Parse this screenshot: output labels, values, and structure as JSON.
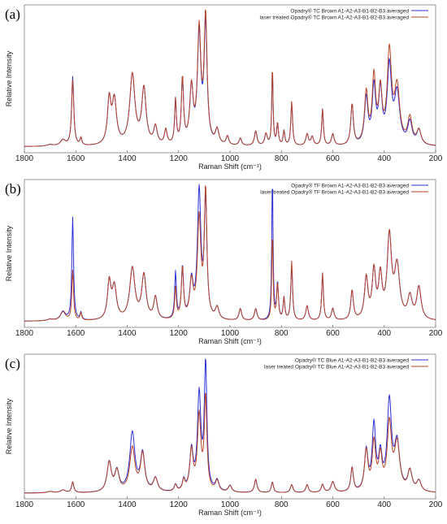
{
  "chart_data": [
    {
      "panel_label": "(a)",
      "type": "line",
      "xlabel": "Raman Shift (cm⁻¹)",
      "ylabel": "Relative Intensity",
      "xlim": [
        1800,
        200
      ],
      "x_reversed": true,
      "x_ticks": [
        1800,
        1600,
        1400,
        1200,
        1000,
        800,
        600,
        400,
        200
      ],
      "y_ticks_shown": false,
      "grid": false,
      "legend_position": "top-right",
      "baseline": 0.03,
      "peaks": [
        [
          1700,
          0.01,
          15
        ],
        [
          1650,
          0.04,
          12
        ],
        [
          1612,
          0.45,
          5
        ],
        [
          1580,
          0.05,
          4
        ],
        [
          1470,
          0.3,
          8
        ],
        [
          1450,
          0.3,
          10
        ],
        [
          1380,
          0.48,
          12
        ],
        [
          1335,
          0.38,
          10
        ],
        [
          1290,
          0.12,
          8
        ],
        [
          1250,
          0.1,
          6
        ],
        [
          1212,
          0.3,
          4
        ],
        [
          1185,
          0.45,
          5
        ],
        [
          1150,
          0.38,
          8
        ],
        [
          1120,
          0.7,
          8
        ],
        [
          1095,
          0.75,
          7
        ],
        [
          1050,
          0.1,
          8
        ],
        [
          1010,
          0.06,
          6
        ],
        [
          960,
          0.05,
          6
        ],
        [
          900,
          0.1,
          6
        ],
        [
          860,
          0.08,
          6
        ],
        [
          835,
          0.52,
          3
        ],
        [
          815,
          0.15,
          4
        ],
        [
          790,
          0.1,
          4
        ],
        [
          760,
          0.3,
          4
        ],
        [
          700,
          0.08,
          6
        ],
        [
          680,
          0.06,
          6
        ],
        [
          640,
          0.25,
          4
        ],
        [
          600,
          0.08,
          6
        ],
        [
          525,
          0.28,
          6
        ],
        [
          470,
          0.35,
          8
        ],
        [
          440,
          0.45,
          8
        ],
        [
          415,
          0.35,
          8
        ],
        [
          380,
          0.62,
          10
        ],
        [
          350,
          0.38,
          12
        ],
        [
          300,
          0.18,
          10
        ],
        [
          265,
          0.1,
          10
        ]
      ],
      "series": [
        {
          "name": "Opadry® TC Brown A1-A2-A3-B1-B2-B3 averaged",
          "color": "#2f2fd6",
          "scale": [
            1.0,
            1.0
          ],
          "mods": [
            [
              1612,
              1.05
            ],
            [
              1095,
              1.08
            ],
            [
              1120,
              1.05
            ],
            [
              440,
              0.85
            ],
            [
              380,
              0.85
            ],
            [
              470,
              0.9
            ],
            [
              350,
              0.9
            ],
            [
              300,
              0.85
            ],
            [
              835,
              1.0
            ]
          ]
        },
        {
          "name": "laser treated Opadry® TC Brown A1-A2-A3-B1-B2-B3 averaged",
          "color": "#b5452a",
          "scale": [
            1.0,
            1.0
          ],
          "mods": [
            [
              1095,
              1.15
            ],
            [
              1120,
              1.1
            ],
            [
              835,
              1.05
            ],
            [
              380,
              1.0
            ],
            [
              440,
              1.0
            ]
          ]
        }
      ]
    },
    {
      "panel_label": "(b)",
      "type": "line",
      "xlabel": "Raman Shift (cm⁻¹)",
      "ylabel": "Relative Intensity",
      "xlim": [
        1800,
        200
      ],
      "x_reversed": true,
      "x_ticks": [
        1800,
        1600,
        1400,
        1200,
        1000,
        800,
        600,
        400,
        200
      ],
      "y_ticks_shown": false,
      "grid": false,
      "legend_position": "top-right",
      "baseline": 0.03,
      "peaks": [
        [
          1700,
          0.01,
          15
        ],
        [
          1650,
          0.06,
          12
        ],
        [
          1612,
          0.45,
          4
        ],
        [
          1580,
          0.05,
          4
        ],
        [
          1470,
          0.25,
          8
        ],
        [
          1450,
          0.22,
          10
        ],
        [
          1380,
          0.35,
          12
        ],
        [
          1335,
          0.3,
          10
        ],
        [
          1290,
          0.15,
          8
        ],
        [
          1212,
          0.3,
          4
        ],
        [
          1185,
          0.35,
          5
        ],
        [
          1150,
          0.25,
          8
        ],
        [
          1120,
          0.75,
          8
        ],
        [
          1095,
          0.8,
          6
        ],
        [
          1050,
          0.08,
          8
        ],
        [
          960,
          0.08,
          6
        ],
        [
          900,
          0.08,
          6
        ],
        [
          835,
          0.85,
          3
        ],
        [
          815,
          0.25,
          4
        ],
        [
          790,
          0.15,
          4
        ],
        [
          760,
          0.4,
          4
        ],
        [
          700,
          0.1,
          6
        ],
        [
          640,
          0.32,
          4
        ],
        [
          600,
          0.08,
          6
        ],
        [
          525,
          0.2,
          6
        ],
        [
          470,
          0.28,
          8
        ],
        [
          440,
          0.32,
          8
        ],
        [
          415,
          0.28,
          8
        ],
        [
          380,
          0.55,
          10
        ],
        [
          350,
          0.35,
          12
        ],
        [
          300,
          0.15,
          10
        ],
        [
          265,
          0.22,
          10
        ]
      ],
      "series": [
        {
          "name": "Opadry® TF Brown A1-A2-A3-B1-B2-B3 averaged",
          "color": "#2f2fd6",
          "scale": [
            1.0,
            1.0
          ],
          "mods": [
            [
              1612,
              1.55
            ],
            [
              1120,
              1.15
            ],
            [
              835,
              1.15
            ],
            [
              1212,
              1.05
            ],
            [
              760,
              0.95
            ]
          ]
        },
        {
          "name": "laser treated Opadry® TF Brown A1-A2-A3-B1-B2-B3 averaged",
          "color": "#b5452a",
          "scale": [
            1.0,
            1.0
          ],
          "mods": [
            [
              1612,
              0.75
            ],
            [
              1120,
              0.9
            ],
            [
              1095,
              1.08
            ],
            [
              835,
              0.7
            ],
            [
              1212,
              0.7
            ]
          ]
        }
      ]
    },
    {
      "panel_label": "(c)",
      "type": "line",
      "xlabel": "Raman Shift (cm⁻¹)",
      "ylabel": "Relative Intensity",
      "xlim": [
        1800,
        200
      ],
      "x_reversed": true,
      "x_ticks": [
        1800,
        1600,
        1400,
        1200,
        1000,
        800,
        600,
        400,
        200
      ],
      "y_ticks_shown": false,
      "grid": false,
      "legend_position": "top-right",
      "baseline": 0.03,
      "peaks": [
        [
          1700,
          0.01,
          15
        ],
        [
          1650,
          0.02,
          12
        ],
        [
          1612,
          0.08,
          5
        ],
        [
          1470,
          0.22,
          10
        ],
        [
          1440,
          0.15,
          10
        ],
        [
          1380,
          0.4,
          12
        ],
        [
          1340,
          0.28,
          10
        ],
        [
          1290,
          0.1,
          10
        ],
        [
          1212,
          0.05,
          6
        ],
        [
          1180,
          0.08,
          6
        ],
        [
          1150,
          0.3,
          8
        ],
        [
          1120,
          0.68,
          8
        ],
        [
          1095,
          0.82,
          6
        ],
        [
          1050,
          0.08,
          8
        ],
        [
          1000,
          0.05,
          8
        ],
        [
          900,
          0.1,
          6
        ],
        [
          835,
          0.08,
          5
        ],
        [
          760,
          0.06,
          6
        ],
        [
          700,
          0.06,
          6
        ],
        [
          640,
          0.06,
          6
        ],
        [
          600,
          0.08,
          8
        ],
        [
          525,
          0.18,
          6
        ],
        [
          470,
          0.3,
          8
        ],
        [
          440,
          0.42,
          8
        ],
        [
          415,
          0.25,
          8
        ],
        [
          380,
          0.55,
          10
        ],
        [
          350,
          0.35,
          12
        ],
        [
          300,
          0.15,
          10
        ],
        [
          265,
          0.08,
          10
        ]
      ],
      "series": [
        {
          "name": "Opadry® TC Blue A1-A2-A3-B1-B2-B3 averaged",
          "color": "#2f2fd6",
          "scale": [
            1.0,
            1.0
          ],
          "mods": [
            [
              1095,
              1.15
            ],
            [
              1120,
              1.05
            ],
            [
              380,
              1.2
            ],
            [
              440,
              1.15
            ],
            [
              1380,
              1.1
            ]
          ]
        },
        {
          "name": "laser treated Opadry® TC Blue A1-A2-A3-B1-B2-B3 averaged",
          "color": "#b5452a",
          "scale": [
            1.0,
            1.0
          ],
          "mods": [
            [
              1095,
              0.85
            ],
            [
              1120,
              0.82
            ],
            [
              380,
              0.9
            ],
            [
              440,
              0.85
            ],
            [
              1380,
              0.82
            ]
          ]
        }
      ]
    }
  ]
}
